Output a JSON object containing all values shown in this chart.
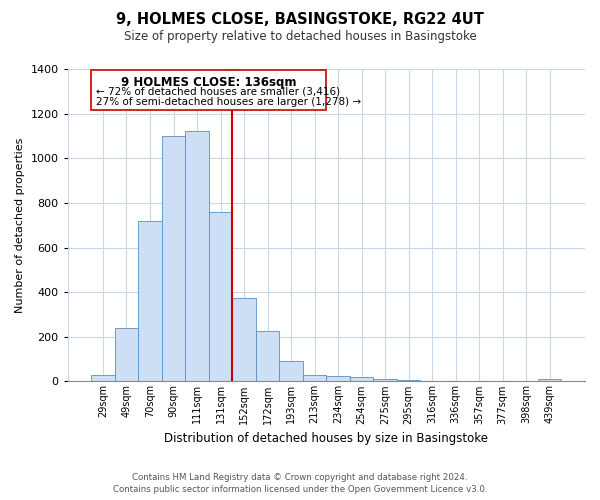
{
  "title": "9, HOLMES CLOSE, BASINGSTOKE, RG22 4UT",
  "subtitle": "Size of property relative to detached houses in Basingstoke",
  "xlabel": "Distribution of detached houses by size in Basingstoke",
  "ylabel": "Number of detached properties",
  "bar_labels": [
    "29sqm",
    "49sqm",
    "70sqm",
    "90sqm",
    "111sqm",
    "131sqm",
    "152sqm",
    "172sqm",
    "193sqm",
    "213sqm",
    "234sqm",
    "254sqm",
    "275sqm",
    "295sqm",
    "316sqm",
    "336sqm",
    "357sqm",
    "377sqm",
    "398sqm",
    "439sqm"
  ],
  "bar_values": [
    30,
    240,
    720,
    1100,
    1120,
    760,
    375,
    225,
    90,
    30,
    25,
    20,
    10,
    5,
    0,
    0,
    0,
    0,
    0,
    10
  ],
  "bar_color": "#ccdff5",
  "bar_edge_color": "#5a8fc3",
  "vline_color": "#cc0000",
  "vline_x_idx": 6,
  "ylim": [
    0,
    1400
  ],
  "yticks": [
    0,
    200,
    400,
    600,
    800,
    1000,
    1200,
    1400
  ],
  "annotation_title": "9 HOLMES CLOSE: 136sqm",
  "annotation_line1": "← 72% of detached houses are smaller (3,416)",
  "annotation_line2": "27% of semi-detached houses are larger (1,278) →",
  "annotation_box_color": "#ffffff",
  "annotation_box_edge": "#cc0000",
  "footer_line1": "Contains HM Land Registry data © Crown copyright and database right 2024.",
  "footer_line2": "Contains public sector information licensed under the Open Government Licence v3.0.",
  "background_color": "#ffffff",
  "grid_color": "#c8d8e8"
}
